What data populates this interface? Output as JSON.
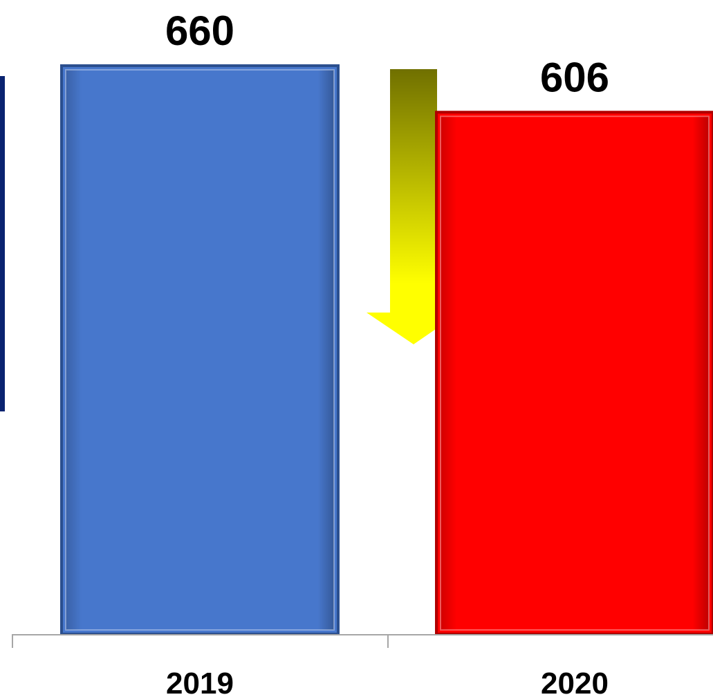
{
  "chart_data": {
    "type": "bar",
    "categories": [
      "2019",
      "2020"
    ],
    "values": [
      660,
      606
    ],
    "data_labels": [
      "660",
      "606"
    ],
    "bar_colors": [
      "#4777CC",
      "#FF0000"
    ],
    "bar_border_colors": [
      "#2B4F8E",
      "#B00000"
    ],
    "title": "",
    "xlabel": "",
    "ylabel": "",
    "ylim": [
      0,
      660
    ],
    "grid": false,
    "legend": "none",
    "annotations": [
      {
        "type": "arrow-down",
        "between_categories": [
          "2019",
          "2020"
        ],
        "gradient_colors": [
          "#707000",
          "#FFFF00"
        ]
      }
    ],
    "accent_colors": {
      "left_edge_bar": "#0A2370",
      "axis_line": "#A6A6A6"
    }
  }
}
